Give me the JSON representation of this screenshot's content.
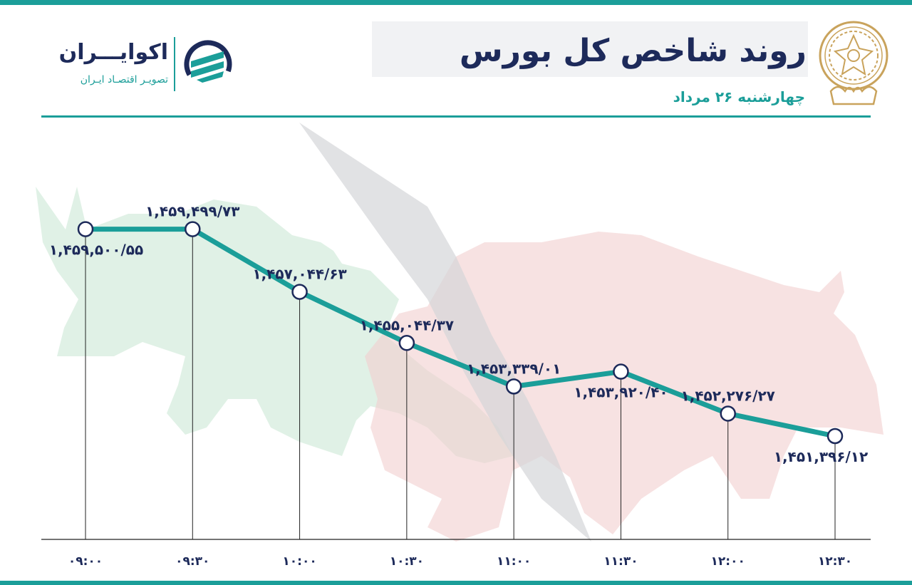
{
  "header": {
    "title": "روند شاخص کل بورس",
    "subtitle": "چهارشنبه ۲۶ مرداد"
  },
  "brand": {
    "name": "اکوایـــران",
    "tagline": "تصویـر اقتصـاد ایـران"
  },
  "colors": {
    "line": "#1b9e99",
    "text": "#1d2a5a",
    "bull": "#cfead8",
    "bear": "#f2cfcf",
    "arrow": "#d4d6d9",
    "emblem": "#c9a35c"
  },
  "icons": {
    "brand_logo": "ecoiran-logo-icon",
    "emblem": "tehran-stock-exchange-emblem-icon",
    "background": "bull-and-bear-illustration"
  },
  "chart_data": {
    "type": "line",
    "title": "روند شاخص کل بورس",
    "subtitle": "چهارشنبه ۲۶ مرداد",
    "xlabel": "",
    "ylabel": "",
    "categories": [
      "۰۹:۰۰",
      "۰۹:۳۰",
      "۱۰:۰۰",
      "۱۰:۳۰",
      "۱۱:۰۰",
      "۱۱:۳۰",
      "۱۲:۰۰",
      "۱۲:۳۰"
    ],
    "values": [
      1459500.55,
      1459499.73,
      1457044.63,
      1455044.37,
      1453339.01,
      1453920.4,
      1452276.27,
      1451396.12
    ],
    "data_labels": [
      "۱,۴۵۹,۵۰۰/۵۵",
      "۱,۴۵۹,۴۹۹/۷۳",
      "۱,۴۵۷,۰۴۴/۶۳",
      "۱,۴۵۵,۰۴۴/۳۷",
      "۱,۴۵۳,۳۳۹/۰۱",
      "۱,۴۵۳,۹۲۰/۴۰",
      "۱,۴۵۲,۲۷۶/۲۷",
      "۱,۴۵۱,۳۹۶/۱۲"
    ],
    "grid": false,
    "legend": "none"
  }
}
